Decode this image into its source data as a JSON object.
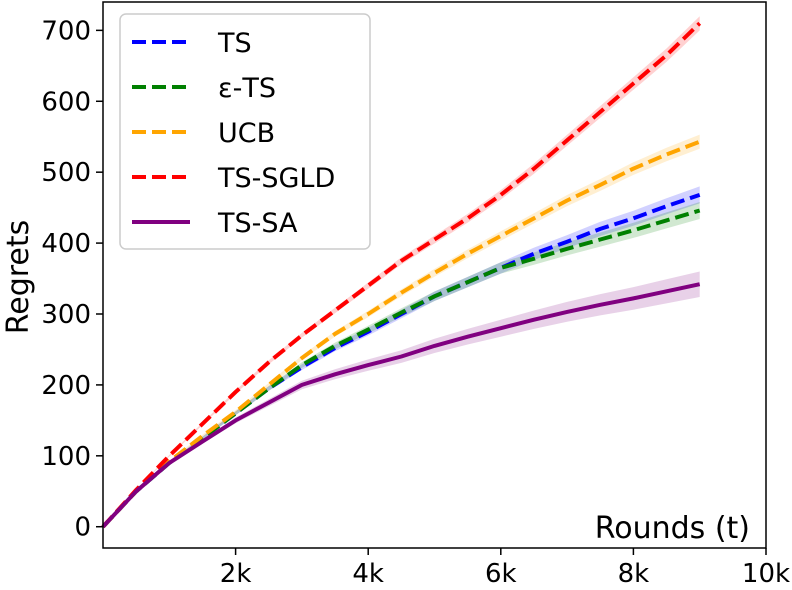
{
  "chart_data": {
    "type": "line",
    "title": "",
    "xlabel": "Rounds (t)",
    "ylabel": "Regrets",
    "xlim": [
      0,
      10000
    ],
    "ylim": [
      -30,
      740
    ],
    "grid": false,
    "legend_position": "top-left",
    "x_ticks": [
      2000,
      4000,
      6000,
      8000,
      10000
    ],
    "x_tick_labels": [
      "2k",
      "4k",
      "6k",
      "8k",
      "10k"
    ],
    "y_ticks": [
      0,
      100,
      200,
      300,
      400,
      500,
      600,
      700
    ],
    "y_tick_labels": [
      "0",
      "100",
      "200",
      "300",
      "400",
      "500",
      "600",
      "700"
    ],
    "x": [
      0,
      500,
      1000,
      1500,
      2000,
      2500,
      3000,
      3500,
      4000,
      4500,
      5000,
      5500,
      6000,
      6500,
      7000,
      7500,
      8000,
      8500,
      9000
    ],
    "series": [
      {
        "name": "TS",
        "color": "#0000ff",
        "style": "dashed",
        "values": [
          0,
          50,
          90,
          125,
          160,
          195,
          225,
          252,
          275,
          300,
          325,
          345,
          365,
          385,
          402,
          420,
          435,
          452,
          468
        ],
        "band": 12
      },
      {
        "name": "ε-TS",
        "color": "#008000",
        "style": "dashed",
        "values": [
          0,
          50,
          90,
          125,
          160,
          195,
          228,
          255,
          278,
          302,
          325,
          345,
          365,
          378,
          392,
          405,
          418,
          432,
          446
        ],
        "band": 12
      },
      {
        "name": "UCB",
        "color": "#ffa500",
        "style": "dashed",
        "values": [
          0,
          50,
          92,
          128,
          162,
          200,
          238,
          272,
          300,
          330,
          358,
          385,
          410,
          435,
          460,
          482,
          505,
          525,
          543
        ],
        "band": 10
      },
      {
        "name": "TS-SGLD",
        "color": "#ff0000",
        "style": "dashed",
        "values": [
          0,
          52,
          100,
          145,
          190,
          232,
          270,
          305,
          340,
          375,
          405,
          435,
          468,
          505,
          545,
          585,
          625,
          665,
          710
        ],
        "band": 10
      },
      {
        "name": "TS-SA",
        "color": "#800080",
        "style": "solid",
        "values": [
          0,
          50,
          90,
          120,
          150,
          175,
          200,
          215,
          228,
          240,
          255,
          268,
          280,
          292,
          303,
          313,
          322,
          332,
          342
        ],
        "band": 18
      }
    ]
  }
}
